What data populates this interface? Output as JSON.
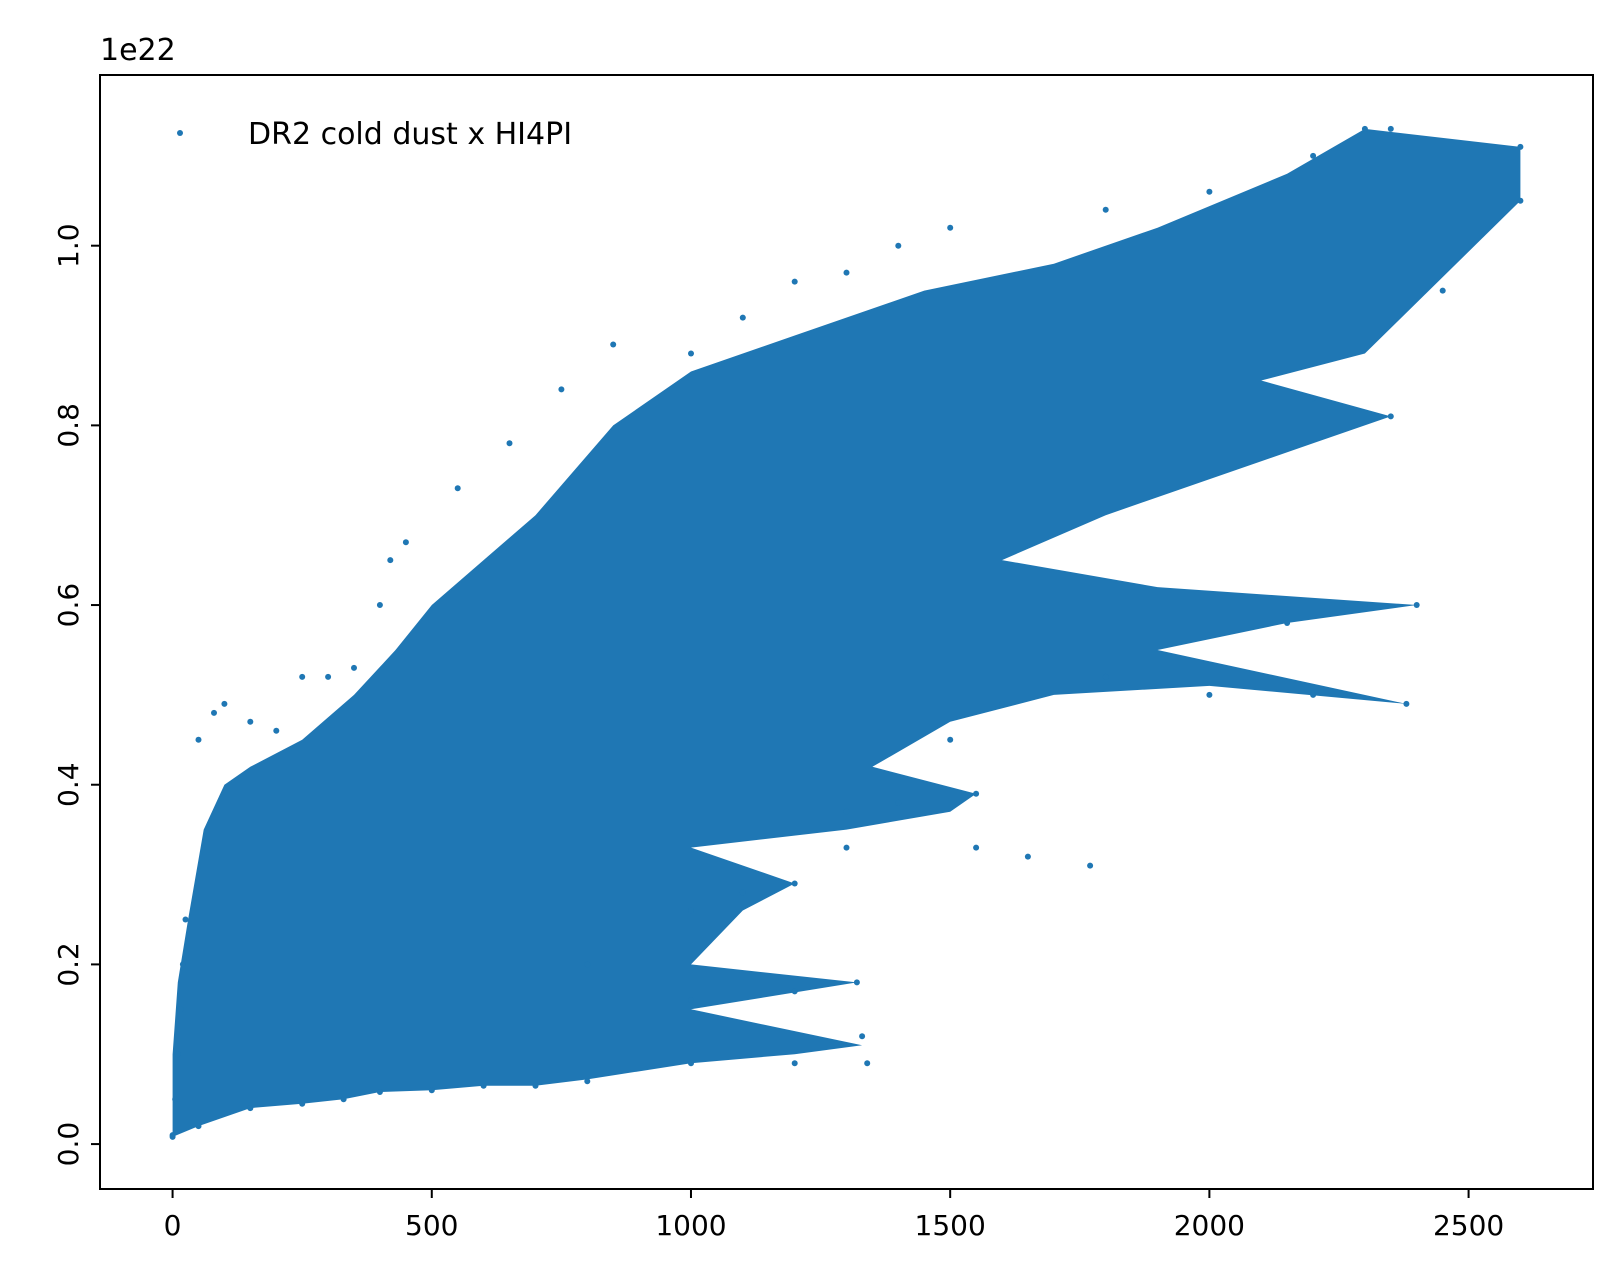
{
  "chart_data": {
    "type": "scatter",
    "title": "",
    "xlabel": "",
    "ylabel": "",
    "y_offset_label": "1e22",
    "xlim": [
      -140,
      2740
    ],
    "ylim": [
      -0.05,
      1.19
    ],
    "y_scale_factor": 1e+22,
    "x_ticks": [
      0,
      500,
      1000,
      1500,
      2000,
      2500
    ],
    "x_tick_labels": [
      "0",
      "500",
      "1000",
      "1500",
      "2000",
      "2500"
    ],
    "y_ticks": [
      0.0,
      0.2,
      0.4,
      0.6,
      0.8,
      1.0
    ],
    "y_tick_labels": [
      "0.0",
      "0.2",
      "0.4",
      "0.6",
      "0.8",
      "1.0"
    ],
    "grid": false,
    "legend_position": "top-left",
    "series": [
      {
        "name": "DR2 cold dust x HI4PI",
        "color": "#1f77b4",
        "marker": "dot",
        "description_of_distribution": "dense point cloud",
        "points": [
          [
            0,
            0.01
          ],
          [
            5,
            0.05
          ],
          [
            10,
            0.1
          ],
          [
            15,
            0.15
          ],
          [
            20,
            0.2
          ],
          [
            25,
            0.25
          ],
          [
            50,
            0.45
          ],
          [
            80,
            0.48
          ],
          [
            100,
            0.49
          ],
          [
            150,
            0.47
          ],
          [
            200,
            0.46
          ],
          [
            250,
            0.52
          ],
          [
            300,
            0.52
          ],
          [
            350,
            0.53
          ],
          [
            400,
            0.6
          ],
          [
            420,
            0.65
          ],
          [
            450,
            0.67
          ],
          [
            550,
            0.73
          ],
          [
            650,
            0.78
          ],
          [
            750,
            0.84
          ],
          [
            850,
            0.89
          ],
          [
            1000,
            0.88
          ],
          [
            1100,
            0.92
          ],
          [
            1200,
            0.96
          ],
          [
            1300,
            0.97
          ],
          [
            1400,
            1.0
          ],
          [
            1500,
            1.02
          ],
          [
            1800,
            1.04
          ],
          [
            2000,
            1.06
          ],
          [
            2200,
            1.1
          ],
          [
            2300,
            1.13
          ],
          [
            2350,
            1.13
          ],
          [
            2600,
            1.11
          ],
          [
            2600,
            1.05
          ],
          [
            2450,
            0.95
          ],
          [
            2350,
            0.81
          ],
          [
            2200,
            0.83
          ],
          [
            2400,
            0.6
          ],
          [
            2300,
            0.6
          ],
          [
            2150,
            0.58
          ],
          [
            2380,
            0.49
          ],
          [
            2200,
            0.5
          ],
          [
            2000,
            0.5
          ],
          [
            1800,
            0.52
          ],
          [
            1600,
            0.49
          ],
          [
            1500,
            0.45
          ],
          [
            1550,
            0.39
          ],
          [
            1400,
            0.38
          ],
          [
            1300,
            0.37
          ],
          [
            1770,
            0.31
          ],
          [
            1650,
            0.32
          ],
          [
            1550,
            0.33
          ],
          [
            1300,
            0.33
          ],
          [
            1200,
            0.29
          ],
          [
            1100,
            0.28
          ],
          [
            1000,
            0.26
          ],
          [
            1320,
            0.18
          ],
          [
            1200,
            0.17
          ],
          [
            1000,
            0.16
          ],
          [
            800,
            0.2
          ],
          [
            1330,
            0.12
          ],
          [
            1340,
            0.09
          ],
          [
            1200,
            0.09
          ],
          [
            1000,
            0.09
          ],
          [
            800,
            0.07
          ],
          [
            700,
            0.065
          ],
          [
            600,
            0.065
          ],
          [
            500,
            0.06
          ],
          [
            400,
            0.058
          ],
          [
            330,
            0.05
          ],
          [
            250,
            0.045
          ],
          [
            150,
            0.04
          ],
          [
            50,
            0.02
          ],
          [
            0,
            0.008
          ]
        ]
      }
    ]
  }
}
